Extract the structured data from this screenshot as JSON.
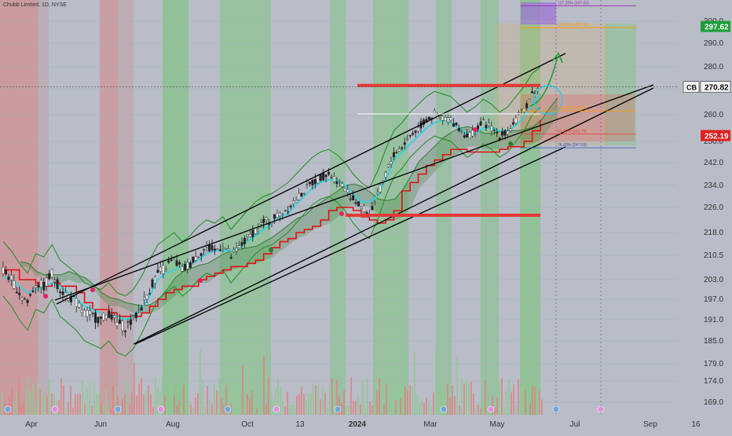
{
  "header": {
    "symbol_line": "Chubb Limited, 1D, NYSE"
  },
  "chart_data": {
    "type": "line",
    "symbol": "CB",
    "timeframe": "1D",
    "exchange": "NYSE",
    "ylim": [
      165,
      305
    ],
    "y_ticks": [
      169.0,
      174.0,
      179.0,
      185.0,
      191.0,
      197.0,
      203.0,
      210.5,
      218.0,
      226.0,
      234.0,
      242.0,
      250.0,
      260.0,
      270.0,
      280.0,
      290.0,
      300.0
    ],
    "x_ticks": [
      "Apr",
      "Jun",
      "Aug",
      "Oct",
      "13",
      "2024",
      "Mar",
      "May",
      "Jul",
      "Sep",
      "16"
    ],
    "price_labels": [
      {
        "text": "297.62",
        "value": 297.62,
        "color": "#1e9e3a"
      },
      {
        "text": "270.82",
        "value": 270.82,
        "color": "#222222",
        "tag": "CB"
      },
      {
        "text": "252.19",
        "value": 252.19,
        "color": "#e02020"
      }
    ],
    "fib_levels": [
      {
        "label": "127.20% (307.03)",
        "value": 307.03,
        "color": "#9c27b0"
      },
      {
        "label": "100.00% (297.08)",
        "value": 297.08,
        "color": "#ff9800"
      },
      {
        "label": "38.20% (261.48)",
        "value": 261.48,
        "color": "#ff9800"
      },
      {
        "label": "61.80% (252.79)",
        "value": 252.79,
        "color": "#e53935"
      },
      {
        "label": "76.00% (247.59)",
        "value": 247.59,
        "color": "#3f51b5"
      }
    ],
    "resistance_level": 271.5,
    "support_level": 223.5,
    "close_series": [
      206,
      203,
      199,
      196,
      202,
      201,
      205,
      200,
      198,
      196,
      193,
      192,
      191,
      193,
      190,
      189,
      191,
      195,
      200,
      205,
      207,
      209,
      206,
      208,
      211,
      213,
      212,
      214,
      210,
      213,
      216,
      219,
      221,
      222,
      224,
      226,
      229,
      232,
      235,
      237,
      238,
      236,
      233,
      229,
      226,
      224,
      230,
      238,
      245,
      248,
      252,
      255,
      258,
      260,
      259,
      258,
      255,
      252,
      254,
      257,
      255,
      252,
      254,
      258,
      262,
      268,
      270.8
    ],
    "conversion_line": [
      204,
      203,
      201,
      199,
      200,
      201,
      202,
      201,
      199,
      197,
      195,
      194,
      193,
      192,
      192,
      191,
      192,
      194,
      198,
      203,
      205,
      206,
      207,
      208,
      209,
      211,
      212,
      212,
      212,
      213,
      215,
      217,
      219,
      221,
      223,
      224,
      227,
      230,
      233,
      235,
      236,
      236,
      234,
      231,
      228,
      228,
      230,
      236,
      243,
      246,
      249,
      252,
      255,
      257,
      258,
      257,
      255,
      253,
      253,
      255,
      255,
      254,
      254,
      256,
      259,
      264,
      268
    ],
    "base_line": [
      210,
      210,
      207,
      207,
      206,
      205,
      206,
      205,
      205,
      203,
      200,
      198,
      198,
      197,
      196,
      196,
      196,
      197,
      199,
      201,
      203,
      204,
      205,
      205,
      207,
      208,
      209,
      210,
      211,
      211,
      212,
      213,
      215,
      217,
      219,
      220,
      222,
      223,
      224,
      226,
      229,
      230,
      230,
      229,
      227,
      226,
      225,
      226,
      229,
      236,
      239,
      242,
      245,
      247,
      249,
      251,
      251,
      250,
      250,
      250,
      250,
      251,
      252,
      252,
      254,
      258,
      262
    ]
  }
}
